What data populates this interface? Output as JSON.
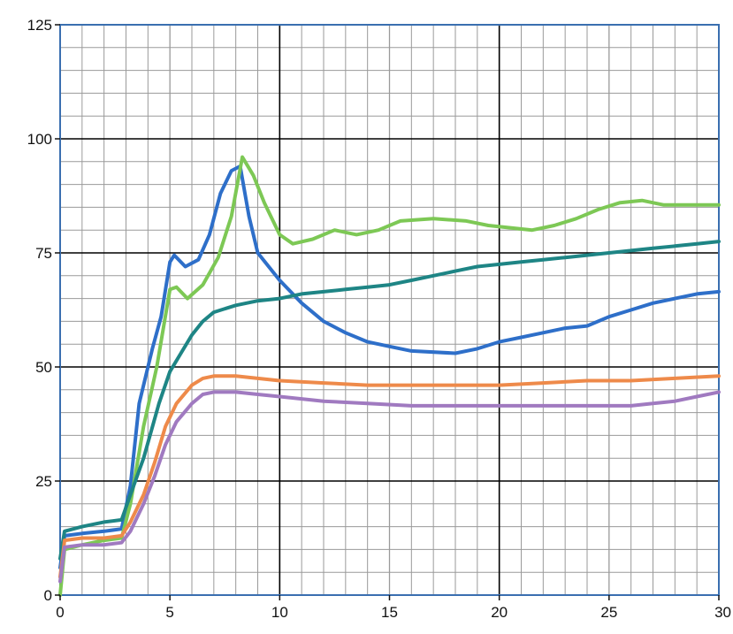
{
  "chart_data": {
    "type": "line",
    "title": "",
    "xlabel": "",
    "ylabel": "",
    "xlim": [
      0,
      30
    ],
    "ylim": [
      0,
      125
    ],
    "x_ticks": [
      0,
      5,
      10,
      15,
      20,
      25,
      30
    ],
    "y_ticks": [
      0,
      25,
      50,
      75,
      100,
      125
    ],
    "x_tick_labels": [
      "0",
      "5",
      "10",
      "15",
      "20",
      "25",
      "30"
    ],
    "y_tick_labels": [
      "0",
      "25",
      "50",
      "75",
      "100",
      "125"
    ],
    "grid": true,
    "legend": "none",
    "colors": {
      "background": "#ffffff",
      "frame": "#3a6fb0",
      "minor_grid": "#9a9a9a",
      "major_grid": "#000000",
      "tick_label": "#111111"
    },
    "series": [
      {
        "color": "#2e6fc9",
        "points": [
          [
            0,
            6
          ],
          [
            0.2,
            13
          ],
          [
            1,
            13.5
          ],
          [
            2,
            14
          ],
          [
            2.8,
            14.5
          ],
          [
            3.2,
            24
          ],
          [
            3.6,
            42
          ],
          [
            4.2,
            54
          ],
          [
            4.6,
            61
          ],
          [
            5,
            73
          ],
          [
            5.2,
            74.5
          ],
          [
            5.7,
            72
          ],
          [
            6.3,
            73.5
          ],
          [
            6.8,
            79
          ],
          [
            7.3,
            88
          ],
          [
            7.8,
            93
          ],
          [
            8.2,
            94
          ],
          [
            8.6,
            83
          ],
          [
            9,
            75
          ],
          [
            10,
            69
          ],
          [
            11,
            64
          ],
          [
            12,
            60
          ],
          [
            13,
            57.5
          ],
          [
            14,
            55.5
          ],
          [
            15,
            54.5
          ],
          [
            16,
            53.5
          ],
          [
            18,
            53
          ],
          [
            19,
            54
          ],
          [
            20,
            55.5
          ],
          [
            21,
            56.5
          ],
          [
            22,
            57.5
          ],
          [
            23,
            58.5
          ],
          [
            24,
            59
          ],
          [
            25,
            61
          ],
          [
            26,
            62.5
          ],
          [
            27,
            64
          ],
          [
            28,
            65
          ],
          [
            29,
            66
          ],
          [
            30,
            66.5
          ]
        ]
      },
      {
        "color": "#7dc855",
        "points": [
          [
            0,
            0
          ],
          [
            0.2,
            10
          ],
          [
            1,
            11
          ],
          [
            2,
            12
          ],
          [
            2.8,
            12.5
          ],
          [
            3.2,
            20
          ],
          [
            3.8,
            37
          ],
          [
            4.4,
            50
          ],
          [
            5,
            67
          ],
          [
            5.3,
            67.5
          ],
          [
            5.8,
            65
          ],
          [
            6.5,
            68
          ],
          [
            7.2,
            74
          ],
          [
            7.8,
            83
          ],
          [
            8.3,
            96
          ],
          [
            8.8,
            92
          ],
          [
            9.3,
            86
          ],
          [
            10,
            79
          ],
          [
            10.6,
            77
          ],
          [
            11.5,
            78
          ],
          [
            12.5,
            80
          ],
          [
            13.5,
            79
          ],
          [
            14.5,
            80
          ],
          [
            15.5,
            82
          ],
          [
            17,
            82.5
          ],
          [
            18.5,
            82
          ],
          [
            19.5,
            81
          ],
          [
            20.5,
            80.5
          ],
          [
            21.5,
            80
          ],
          [
            22.5,
            81
          ],
          [
            23.5,
            82.5
          ],
          [
            24.5,
            84.5
          ],
          [
            25.5,
            86
          ],
          [
            26.5,
            86.5
          ],
          [
            27.5,
            85.5
          ],
          [
            30,
            85.5
          ]
        ]
      },
      {
        "color": "#1e8585",
        "points": [
          [
            0,
            8
          ],
          [
            0.2,
            14
          ],
          [
            1,
            15
          ],
          [
            2,
            16
          ],
          [
            2.8,
            16.5
          ],
          [
            3.2,
            22
          ],
          [
            3.8,
            30
          ],
          [
            4.5,
            42
          ],
          [
            5,
            49
          ],
          [
            5.5,
            53
          ],
          [
            6,
            57
          ],
          [
            6.5,
            60
          ],
          [
            7,
            62
          ],
          [
            8,
            63.5
          ],
          [
            9,
            64.5
          ],
          [
            10,
            65
          ],
          [
            11,
            66
          ],
          [
            12,
            66.5
          ],
          [
            13,
            67
          ],
          [
            14,
            67.5
          ],
          [
            15,
            68
          ],
          [
            16,
            69
          ],
          [
            17,
            70
          ],
          [
            18,
            71
          ],
          [
            19,
            72
          ],
          [
            20,
            72.5
          ],
          [
            21,
            73
          ],
          [
            22,
            73.5
          ],
          [
            23,
            74
          ],
          [
            24,
            74.5
          ],
          [
            25,
            75
          ],
          [
            26,
            75.5
          ],
          [
            27,
            76
          ],
          [
            28,
            76.5
          ],
          [
            29,
            77
          ],
          [
            30,
            77.5
          ]
        ]
      },
      {
        "color": "#ee8a4a",
        "points": [
          [
            0,
            4
          ],
          [
            0.2,
            12
          ],
          [
            1,
            12.5
          ],
          [
            2,
            12.5
          ],
          [
            2.8,
            13
          ],
          [
            3.2,
            16
          ],
          [
            3.8,
            22
          ],
          [
            4.3,
            29
          ],
          [
            4.8,
            37
          ],
          [
            5.3,
            42
          ],
          [
            6,
            46
          ],
          [
            6.5,
            47.5
          ],
          [
            7,
            48
          ],
          [
            8,
            48
          ],
          [
            9,
            47.5
          ],
          [
            10,
            47
          ],
          [
            12,
            46.5
          ],
          [
            14,
            46
          ],
          [
            16,
            46
          ],
          [
            18,
            46
          ],
          [
            20,
            46
          ],
          [
            22,
            46.5
          ],
          [
            24,
            47
          ],
          [
            26,
            47
          ],
          [
            28,
            47.5
          ],
          [
            30,
            48
          ]
        ]
      },
      {
        "color": "#a07ac0",
        "points": [
          [
            0,
            3
          ],
          [
            0.2,
            10.5
          ],
          [
            1,
            11
          ],
          [
            2,
            11
          ],
          [
            2.8,
            11.5
          ],
          [
            3.2,
            14
          ],
          [
            3.8,
            20
          ],
          [
            4.3,
            26
          ],
          [
            4.8,
            33
          ],
          [
            5.3,
            38
          ],
          [
            6,
            42
          ],
          [
            6.5,
            44
          ],
          [
            7,
            44.5
          ],
          [
            8,
            44.5
          ],
          [
            9,
            44
          ],
          [
            10,
            43.5
          ],
          [
            12,
            42.5
          ],
          [
            14,
            42
          ],
          [
            16,
            41.5
          ],
          [
            18,
            41.5
          ],
          [
            20,
            41.5
          ],
          [
            22,
            41.5
          ],
          [
            24,
            41.5
          ],
          [
            26,
            41.5
          ],
          [
            27,
            42
          ],
          [
            28,
            42.5
          ],
          [
            29,
            43.5
          ],
          [
            30,
            44.5
          ]
        ]
      }
    ]
  }
}
